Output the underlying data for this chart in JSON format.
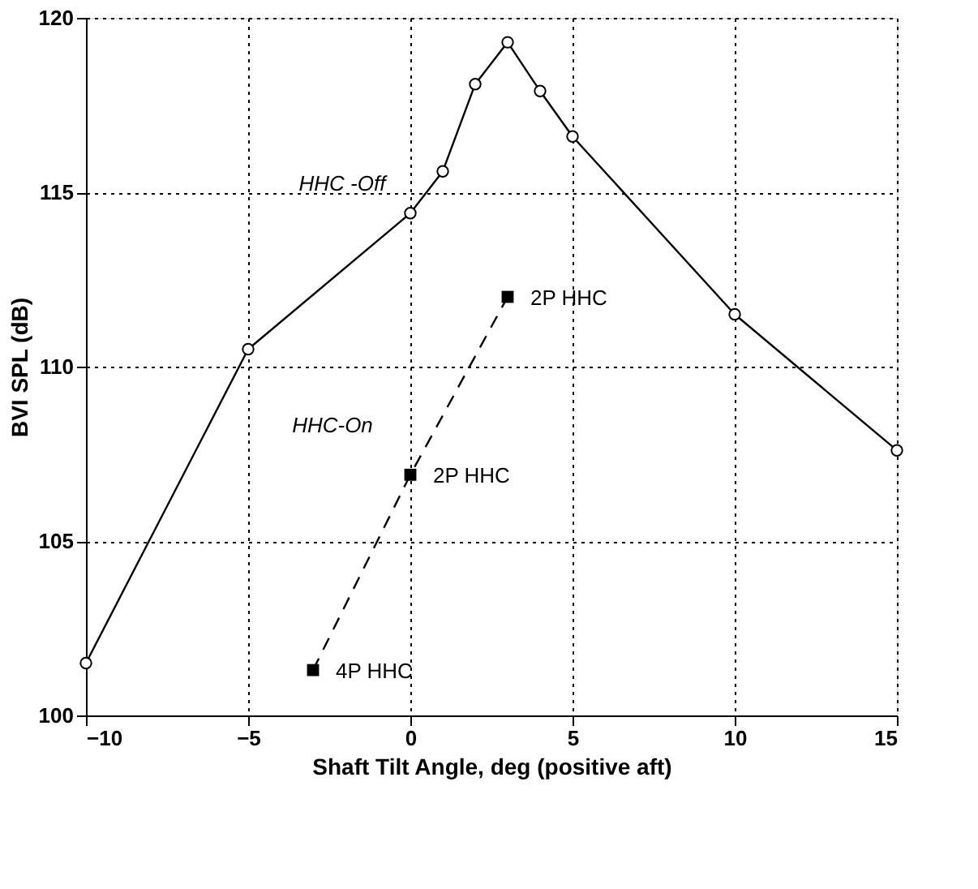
{
  "chart_data": {
    "type": "line",
    "xlabel": "Shaft Tilt Angle, deg (positive aft)",
    "ylabel": "BVI SPL (dB)",
    "xlim": [
      -10,
      15
    ],
    "xticks": [
      -10,
      -5,
      0,
      5,
      10,
      15
    ],
    "ylim": [
      100,
      120
    ],
    "yticks": [
      100,
      105,
      110,
      115,
      120
    ],
    "grid": true,
    "series": [
      {
        "name": "HHC -Off",
        "color": "#000000",
        "marker": "circle",
        "line_style": "solid",
        "x": [
          -10,
          -5,
          0,
          1,
          2,
          3,
          4,
          5,
          10,
          15
        ],
        "values": [
          101.5,
          110.5,
          114.4,
          115.6,
          118.1,
          119.3,
          117.9,
          116.6,
          111.5,
          107.6
        ]
      },
      {
        "name": "HHC-On",
        "color": "#000000",
        "marker": "square",
        "line_style": "dashed",
        "x": [
          -3,
          0,
          3
        ],
        "values": [
          101.3,
          106.9,
          112.0
        ]
      }
    ],
    "annotations": [
      {
        "text": "2P HHC",
        "x": 3,
        "y": 112.0
      },
      {
        "text": "2P HHC",
        "x": 0,
        "y": 106.9
      },
      {
        "text": "4P HHC",
        "x": -3,
        "y": 101.3
      }
    ]
  }
}
